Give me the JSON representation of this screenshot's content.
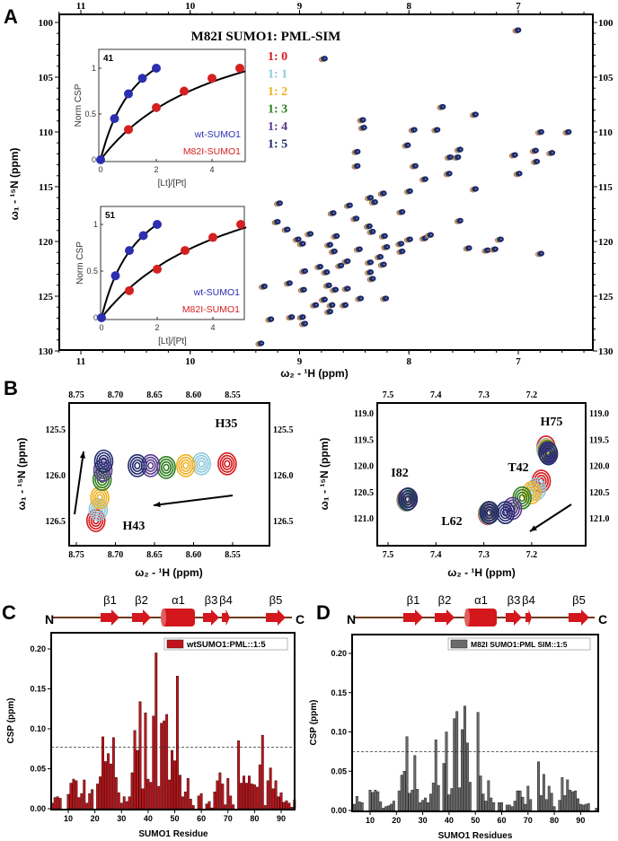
{
  "panel_labels": {
    "a": "A",
    "b": "B",
    "c": "C",
    "d": "D"
  },
  "colors": {
    "ratio_1_0": "#d7191c",
    "ratio_1_1": "#8ec9dc",
    "ratio_1_2": "#f0b020",
    "ratio_1_3": "#2e7d1e",
    "ratio_1_4": "#5b3a8c",
    "ratio_1_5": "#1f2a6b",
    "wt": "#2b2fb0",
    "m82i": "#d42020",
    "bar_c": "#c0141c",
    "bar_d": "#6b6b6b",
    "topology_arrow": "#d3171d",
    "topology_line": "#6b3a1a"
  },
  "chart_data": [
    {
      "id": "A",
      "type": "scatter",
      "title": "M82I SUMO1: PML-SIM",
      "xlabel": "ω₂ - ¹H  (ppm)",
      "ylabel": "ω₁ - ¹⁵N  (ppm)",
      "xlim": [
        11.2,
        6.35
      ],
      "ylim": [
        100,
        130
      ],
      "xticks": [
        11,
        10,
        9,
        8,
        7
      ],
      "yticks": [
        100,
        105,
        110,
        115,
        120,
        125,
        130
      ],
      "legend": [
        "1: 0",
        "1: 1",
        "1: 2",
        "1: 3",
        "1: 4",
        "1: 5"
      ],
      "peaks_H_N": [
        [
          7.0,
          100.7
        ],
        [
          8.77,
          103.3
        ],
        [
          7.69,
          107.7
        ],
        [
          7.39,
          108.4
        ],
        [
          8.42,
          108.9
        ],
        [
          8.41,
          109.6
        ],
        [
          7.95,
          109.8
        ],
        [
          7.74,
          109.8
        ],
        [
          8.01,
          111.2
        ],
        [
          8.47,
          111.8
        ],
        [
          8.47,
          113.1
        ],
        [
          7.94,
          113.1
        ],
        [
          7.53,
          111.6
        ],
        [
          7.55,
          112.3
        ],
        [
          7.62,
          112.3
        ],
        [
          7.85,
          114.3
        ],
        [
          7.63,
          113.8
        ],
        [
          7.39,
          115.2
        ],
        [
          6.79,
          110.0
        ],
        [
          6.54,
          110.0
        ],
        [
          7.03,
          112.1
        ],
        [
          6.84,
          111.7
        ],
        [
          6.83,
          112.7
        ],
        [
          6.69,
          111.9
        ],
        [
          6.99,
          113.8
        ],
        [
          8.23,
          115.6
        ],
        [
          7.99,
          115.4
        ],
        [
          9.18,
          116.5
        ],
        [
          8.35,
          116.0
        ],
        [
          8.31,
          116.4
        ],
        [
          8.54,
          116.7
        ],
        [
          8.06,
          117.3
        ],
        [
          8.69,
          117.4
        ],
        [
          8.48,
          117.9
        ],
        [
          7.53,
          118.1
        ],
        [
          9.2,
          118.2
        ],
        [
          9.11,
          118.9
        ],
        [
          8.36,
          118.6
        ],
        [
          8.33,
          119.1
        ],
        [
          8.22,
          119.5
        ],
        [
          9.01,
          119.8
        ],
        [
          8.9,
          119.3
        ],
        [
          8.66,
          119.5
        ],
        [
          8.97,
          120.2
        ],
        [
          8.72,
          120.3
        ],
        [
          8.68,
          120.9
        ],
        [
          8.2,
          120.5
        ],
        [
          7.99,
          119.8
        ],
        [
          7.85,
          119.7
        ],
        [
          7.8,
          119.4
        ],
        [
          8.06,
          120.9
        ],
        [
          8.07,
          120.2
        ],
        [
          7.45,
          120.6
        ],
        [
          7.28,
          120.8
        ],
        [
          7.21,
          120.7
        ],
        [
          7.16,
          119.8
        ],
        [
          6.79,
          121.1
        ],
        [
          8.45,
          120.7
        ],
        [
          8.56,
          121.8
        ],
        [
          8.35,
          121.9
        ],
        [
          8.26,
          121.4
        ],
        [
          8.23,
          122.1
        ],
        [
          8.62,
          122.2
        ],
        [
          8.81,
          122.3
        ],
        [
          8.75,
          122.8
        ],
        [
          8.95,
          122.7
        ],
        [
          8.35,
          122.8
        ],
        [
          8.33,
          123.4
        ],
        [
          9.09,
          123.8
        ],
        [
          9.32,
          124.1
        ],
        [
          8.73,
          124.0
        ],
        [
          8.67,
          124.4
        ],
        [
          8.96,
          124.4
        ],
        [
          8.56,
          124.3
        ],
        [
          8.44,
          125.2
        ],
        [
          8.21,
          125.2
        ],
        [
          8.77,
          125.3
        ],
        [
          8.85,
          125.8
        ],
        [
          8.7,
          125.8
        ],
        [
          8.58,
          125.8
        ],
        [
          8.72,
          126.4
        ],
        [
          9.26,
          127.1
        ],
        [
          9.07,
          126.9
        ],
        [
          8.97,
          126.9
        ],
        [
          8.95,
          127.5
        ],
        [
          9.35,
          129.3
        ]
      ],
      "insets": [
        {
          "residue": "41",
          "xlabel": "[Lt]/[Pt]",
          "ylabel": "Norm CSP",
          "xticks": [
            "0",
            "2",
            "4"
          ],
          "yticks": [
            "0",
            "0.5",
            "1"
          ],
          "series": [
            {
              "name": "wt-SUMO1",
              "x": [
                0,
                0.5,
                1,
                1.5,
                2
              ],
              "y": [
                0,
                0.45,
                0.72,
                0.89,
                1.0
              ]
            },
            {
              "name": "M82I-SUMO1",
              "x": [
                1,
                2,
                3,
                4,
                5
              ],
              "y": [
                0.33,
                0.57,
                0.75,
                0.89,
                1.0
              ]
            }
          ]
        },
        {
          "residue": "51",
          "xlabel": "[Lt]/[Pt]",
          "ylabel": "Norm CSP",
          "xticks": [
            "0",
            "2",
            "4"
          ],
          "yticks": [
            "0",
            "0.5",
            "1"
          ],
          "series": [
            {
              "name": "wt-SUMO1",
              "x": [
                0,
                0.5,
                1,
                1.5,
                2
              ],
              "y": [
                0,
                0.45,
                0.72,
                0.88,
                1.0
              ]
            },
            {
              "name": "M82I-SUMO1",
              "x": [
                1,
                2,
                3,
                4,
                5
              ],
              "y": [
                0.29,
                0.52,
                0.72,
                0.86,
                1.0
              ]
            }
          ]
        }
      ]
    },
    {
      "id": "B-left",
      "type": "scatter",
      "xlabel": "ω₂ - ¹H  (ppm)",
      "ylabel": "ω₁ - ¹⁵N  (ppm)",
      "xticks": [
        "8.75",
        "8.70",
        "8.65",
        "8.60",
        "8.55"
      ],
      "yticks": [
        "125.5",
        "126.0",
        "126.5"
      ],
      "xlim": [
        8.76,
        8.5
      ],
      "ylim": [
        125.2,
        126.8
      ],
      "residues": [
        {
          "label": "H43",
          "H": [
            8.725,
            8.722,
            8.72,
            8.717,
            8.716,
            8.715
          ],
          "N": [
            126.5,
            126.38,
            126.25,
            126.05,
            125.95,
            125.85
          ]
        },
        {
          "label": "H35",
          "H": [
            8.557,
            8.59,
            8.61,
            8.635,
            8.655,
            8.672
          ],
          "N": [
            125.88,
            125.88,
            125.9,
            125.92,
            125.9,
            125.9
          ]
        }
      ]
    },
    {
      "id": "B-right",
      "type": "scatter",
      "xlabel": "ω₂ - ¹H  (ppm)",
      "ylabel": "ω₁ - ¹⁵N  (ppm)",
      "xticks": [
        "7.5",
        "7.4",
        "7.3",
        "7.2"
      ],
      "yticks": [
        "119.0",
        "119.5",
        "120.0",
        "120.5",
        "121.0"
      ],
      "xlim": [
        7.52,
        7.09
      ],
      "ylim": [
        118.8,
        121.5
      ],
      "residues": [
        {
          "label": "I82",
          "H": [
            7.462,
            7.461,
            7.46,
            7.46,
            7.459,
            7.458
          ],
          "N": [
            120.66,
            120.66,
            120.65,
            120.65,
            120.64,
            120.64
          ]
        },
        {
          "label": "H75",
          "H": [
            7.17,
            7.17,
            7.168,
            7.167,
            7.166,
            7.165
          ],
          "N": [
            119.65,
            119.7,
            119.72,
            119.74,
            119.76,
            119.78
          ]
        },
        {
          "label": "T42",
          "H": [
            7.18,
            7.19,
            7.2,
            7.22,
            7.24,
            7.255
          ],
          "N": [
            120.3,
            120.45,
            120.52,
            120.62,
            120.82,
            120.9
          ]
        },
        {
          "label": "L62",
          "H": [
            7.292,
            7.291,
            7.29,
            7.29,
            7.289,
            7.288
          ],
          "N": [
            120.92,
            120.91,
            120.9,
            120.9,
            120.9,
            120.9
          ]
        }
      ]
    },
    {
      "id": "C",
      "type": "bar",
      "legend": "wtSUMO1:PML::1:5",
      "xlabel": "SUMO1 Residue",
      "ylabel": "CSP (ppm)",
      "xlim": [
        3.5,
        95.5
      ],
      "ylim": [
        0,
        0.22
      ],
      "xticks": [
        10,
        20,
        30,
        40,
        50,
        60,
        70,
        80,
        90
      ],
      "yticks": [
        "0.00",
        "0.05",
        "0.10",
        "0.15",
        "0.20"
      ],
      "threshold": 0.077,
      "start_residue": 4,
      "values": [
        0.007,
        0.014,
        0.015,
        0.013,
        0,
        0,
        0.018,
        0.032,
        0.037,
        0.035,
        0.014,
        0.019,
        0.036,
        0.007,
        0.019,
        0.024,
        0,
        0.031,
        0.04,
        0.09,
        0.059,
        0.069,
        0.056,
        0.089,
        0.039,
        0.02,
        0.007,
        0.015,
        0.009,
        0.015,
        0.045,
        0.098,
        0.073,
        0.134,
        0.025,
        0.12,
        0.037,
        0.033,
        0.116,
        0.195,
        0.028,
        0.107,
        0.11,
        0.118,
        0.036,
        0.073,
        0.06,
        0.166,
        0.042,
        0.015,
        0.021,
        0.038,
        0.012,
        0.004,
        0,
        0.016,
        0.019,
        0,
        0.006,
        0.009,
        0.001,
        0.021,
        0.035,
        0.045,
        0.031,
        0.005,
        0.038,
        0.016,
        0.005,
        0,
        0.085,
        0.032,
        0.041,
        0.032,
        0.041,
        0.031,
        0.03,
        0.027,
        0.055,
        0.092,
        0.004,
        0.035,
        0.051,
        0.025,
        0.035,
        0.015,
        0.02,
        0.008,
        0.01,
        0.007,
        0.002,
        0.011
      ],
      "topology": {
        "n_label": "N",
        "c_label": "C",
        "elements": [
          "β1",
          "β2",
          "α1",
          "β3",
          "β4",
          "β5"
        ]
      }
    },
    {
      "id": "D",
      "type": "bar",
      "legend": "M82I SUMO1:PML SIM::1:5",
      "xlabel": "SUMO1 Residues",
      "ylabel": "CSP (ppm)",
      "xlim": [
        3.2,
        96.7
      ],
      "ylim": [
        0,
        0.224
      ],
      "xticks": [
        10,
        20,
        30,
        40,
        50,
        60,
        70,
        80,
        90
      ],
      "yticks": [
        "0.00",
        "0.05",
        "0.10",
        "0.15",
        "0.20"
      ],
      "threshold": 0.075,
      "start_residue": 4,
      "values": [
        0.008,
        0.018,
        0.011,
        0.01,
        0,
        0,
        0.026,
        0.023,
        0.026,
        0.024,
        0.011,
        0.003,
        0.005,
        0.006,
        0.008,
        0.012,
        0,
        0.025,
        0.045,
        0.05,
        0.094,
        0.022,
        0.026,
        0.07,
        0.027,
        0.01,
        0.013,
        0.016,
        0.01,
        0.021,
        0.035,
        0.09,
        0.032,
        0,
        0.06,
        0.1,
        0.02,
        0.028,
        0.117,
        0.126,
        0.029,
        0.103,
        0.133,
        0.086,
        0.036,
        0,
        0,
        0.125,
        0.044,
        0.021,
        0.012,
        0.038,
        0.016,
        0.01,
        0,
        0.01,
        0.01,
        0,
        0.007,
        0.007,
        0.005,
        0.012,
        0.025,
        0.025,
        0.017,
        0.008,
        0.031,
        0.014,
        0,
        0,
        0.062,
        0.019,
        0.046,
        0.014,
        0.031,
        0.022,
        0.005,
        0,
        0.013,
        0.042,
        0.019,
        0.039,
        0.026,
        0.024,
        0.025,
        0.015,
        0.008,
        0.007,
        0.008,
        0.009,
        0,
        0,
        0.003
      ],
      "topology": {
        "n_label": "N",
        "c_label": "C",
        "elements": [
          "β1",
          "β2",
          "α1",
          "β3",
          "β4",
          "β5"
        ]
      }
    }
  ]
}
